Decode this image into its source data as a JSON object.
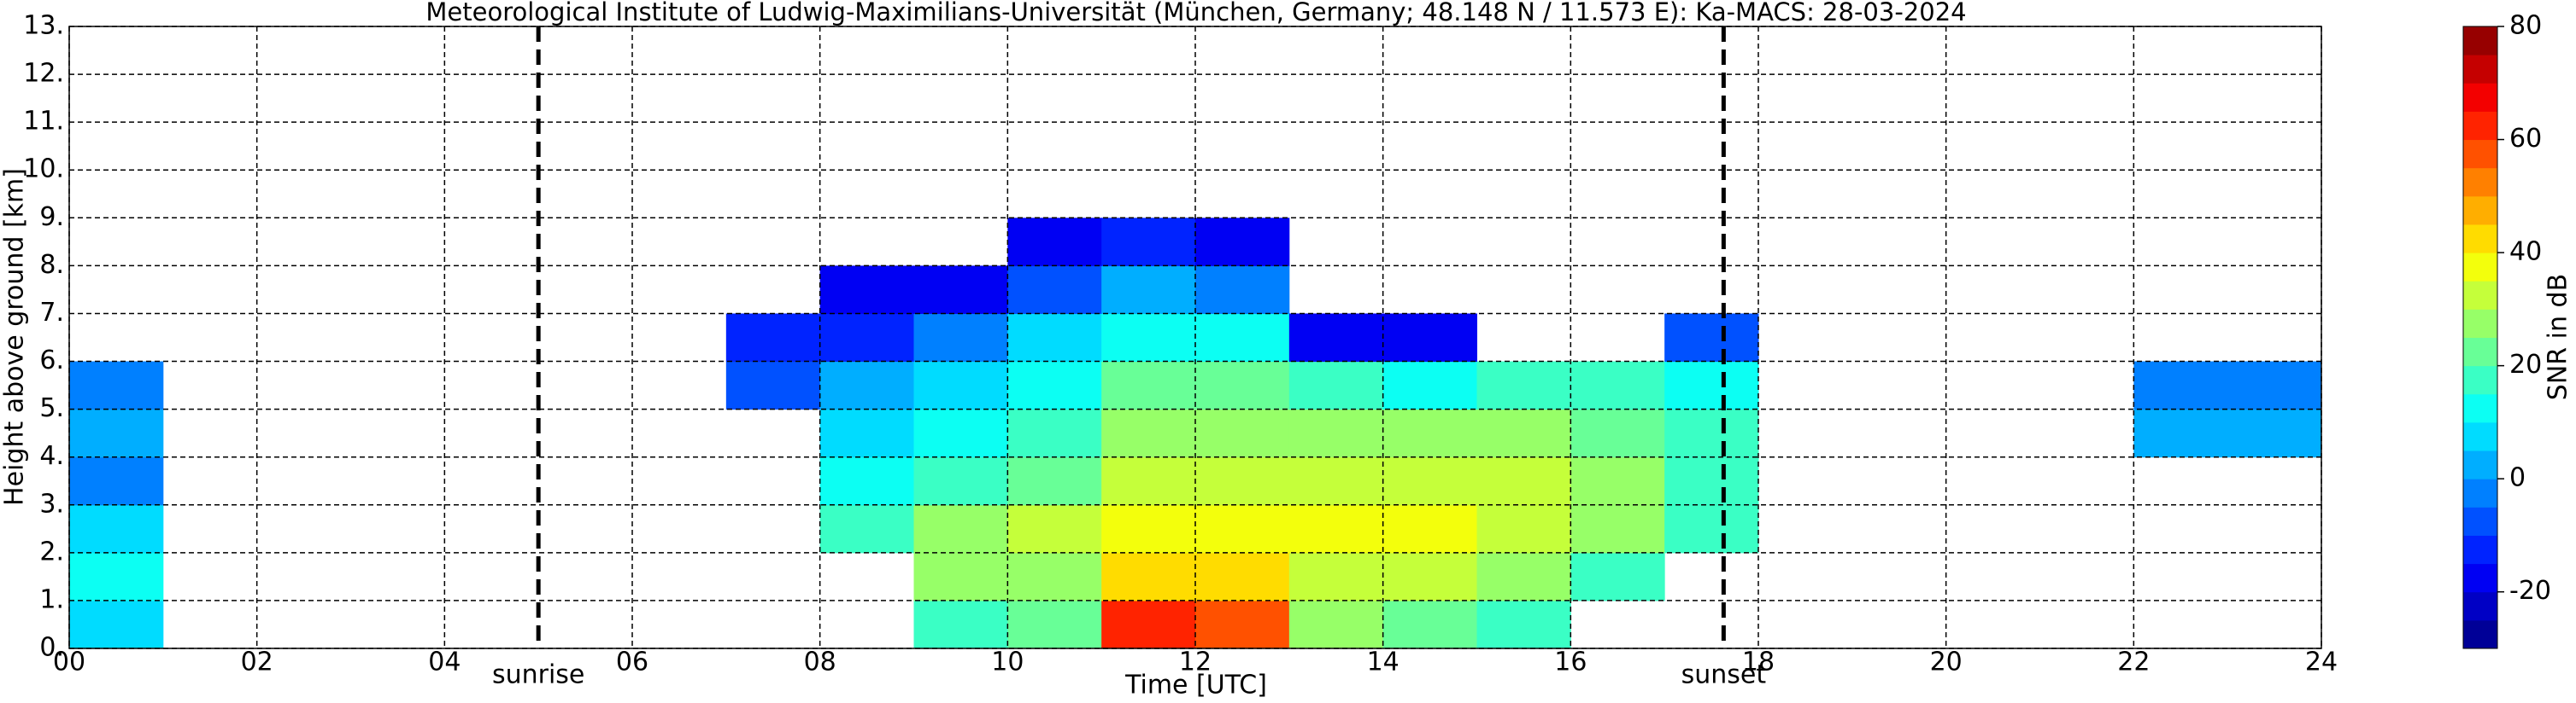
{
  "chart_data": {
    "type": "heatmap",
    "title": "Meteorological Institute of Ludwig-Maximilians-Universität (München, Germany; 48.148 N / 11.573 E):    Ka-MACS: 28-03-2024",
    "xlabel": "Time [UTC]",
    "ylabel": "Height above ground [km]",
    "xlim": [
      0,
      24
    ],
    "ylim": [
      0,
      13
    ],
    "xticks": [
      {
        "value": 0,
        "label": "00"
      },
      {
        "value": 2,
        "label": "02"
      },
      {
        "value": 4,
        "label": "04"
      },
      {
        "value": 6,
        "label": "06"
      },
      {
        "value": 8,
        "label": "08"
      },
      10,
      12,
      14,
      16,
      18,
      20,
      22,
      24
    ],
    "yticks": [
      {
        "value": 0,
        "label": "0."
      },
      {
        "value": 1,
        "label": "1."
      },
      {
        "value": 2,
        "label": "2."
      },
      {
        "value": 3,
        "label": "3."
      },
      {
        "value": 4,
        "label": "4."
      },
      {
        "value": 5,
        "label": "5."
      },
      {
        "value": 6,
        "label": "6."
      },
      {
        "value": 7,
        "label": "7."
      },
      {
        "value": 8,
        "label": "8."
      },
      {
        "value": 9,
        "label": "9."
      },
      {
        "value": 10,
        "label": "10."
      },
      {
        "value": 11,
        "label": "11."
      },
      {
        "value": 12,
        "label": "12."
      },
      {
        "value": 13,
        "label": "13."
      }
    ],
    "grid": true,
    "x_bins": [
      0,
      1,
      2,
      3,
      4,
      5,
      6,
      7,
      8,
      9,
      10,
      11,
      12,
      13,
      14,
      15,
      16,
      17,
      18,
      19,
      20,
      21,
      22,
      23,
      24
    ],
    "y_bins": [
      0,
      1,
      2,
      3,
      4,
      5,
      6,
      7,
      8,
      9
    ],
    "values": [
      [
        5,
        null,
        null,
        null,
        null,
        null,
        null,
        null,
        null,
        15,
        20,
        60,
        55,
        25,
        20,
        15,
        null,
        null,
        null,
        null,
        null,
        null,
        null,
        null
      ],
      [
        10,
        null,
        null,
        null,
        null,
        null,
        null,
        null,
        null,
        25,
        25,
        40,
        40,
        30,
        30,
        25,
        15,
        null,
        null,
        null,
        null,
        null,
        null,
        null
      ],
      [
        5,
        null,
        null,
        null,
        null,
        null,
        null,
        null,
        15,
        25,
        30,
        35,
        35,
        35,
        35,
        30,
        25,
        15,
        null,
        null,
        null,
        null,
        null,
        null
      ],
      [
        -5,
        null,
        null,
        null,
        null,
        null,
        null,
        null,
        10,
        15,
        20,
        30,
        30,
        30,
        30,
        30,
        25,
        15,
        null,
        null,
        null,
        null,
        null,
        null
      ],
      [
        0,
        null,
        null,
        null,
        null,
        null,
        null,
        null,
        5,
        10,
        15,
        25,
        25,
        25,
        25,
        25,
        20,
        15,
        null,
        null,
        null,
        null,
        0,
        0
      ],
      [
        -5,
        null,
        null,
        null,
        null,
        null,
        null,
        -10,
        0,
        5,
        10,
        20,
        20,
        15,
        10,
        15,
        15,
        10,
        null,
        null,
        null,
        null,
        -5,
        -5
      ],
      [
        null,
        null,
        null,
        null,
        null,
        null,
        null,
        -15,
        -15,
        -5,
        5,
        10,
        10,
        -20,
        -20,
        null,
        null,
        -10,
        null,
        null,
        null,
        null,
        null,
        null
      ],
      [
        null,
        null,
        null,
        null,
        null,
        null,
        null,
        null,
        -20,
        -20,
        -10,
        0,
        -5,
        null,
        null,
        null,
        null,
        null,
        null,
        null,
        null,
        null,
        null,
        null
      ],
      [
        null,
        null,
        null,
        null,
        null,
        null,
        null,
        null,
        null,
        null,
        -20,
        -15,
        -20,
        null,
        null,
        null,
        null,
        null,
        null,
        null,
        null,
        null,
        null,
        null
      ]
    ],
    "cmap": "jet",
    "colorbar": {
      "label": "SNR in dB",
      "lim": [
        -30,
        80
      ],
      "ticks": [
        -20,
        0,
        20,
        40,
        60,
        80
      ],
      "levels": [
        -30,
        -25,
        -20,
        -15,
        -10,
        -5,
        0,
        5,
        10,
        15,
        20,
        25,
        30,
        35,
        40,
        45,
        50,
        55,
        60,
        65,
        70,
        75,
        80
      ]
    },
    "annotations": [
      {
        "text": "sunrise",
        "x": 5.0
      },
      {
        "text": "sunset",
        "x": 17.63
      }
    ]
  }
}
